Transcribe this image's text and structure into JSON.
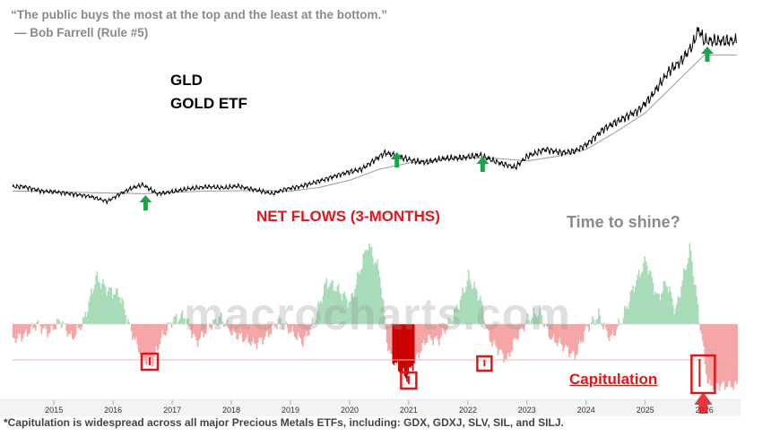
{
  "quote": "“The public buys the most at the top and the least at the bottom.”",
  "quote_author": "— Bob Farrell (Rule #5)",
  "ticker_label": "GLD",
  "name_label": "GOLD ETF",
  "flows_title": "NET FLOWS (3-MONTHS)",
  "question": "Time to shine?",
  "watermark": "macrocharts.com",
  "capitulation_label": "Capitulation",
  "footnote": "*Capitulation is widespread across all major Precious Metals ETFs, including: GDX, GDXJ, SLV, SIL, and SILJ.",
  "colors": {
    "price": "#000000",
    "moving_average": "#9a9a9a",
    "inflow": "#a8dcb8",
    "outflow": "#f5a5a5",
    "extreme_outflow": "#cc0000",
    "arrow": "#1aa34a",
    "highlight": "#e0161b"
  },
  "chart_data": [
    {
      "type": "line",
      "title": "GLD GOLD ETF",
      "x_unit": "year",
      "series": [
        {
          "name": "GLD",
          "x": [
            2014.5,
            2014.8,
            2015.0,
            2015.3,
            2015.6,
            2015.9,
            2016.1,
            2016.3,
            2016.5,
            2016.75,
            2017.0,
            2017.3,
            2017.6,
            2017.9,
            2018.1,
            2018.4,
            2018.7,
            2018.9,
            2019.2,
            2019.5,
            2019.8,
            2020.0,
            2020.2,
            2020.6,
            2020.9,
            2021.1,
            2021.3,
            2021.6,
            2021.9,
            2022.2,
            2022.5,
            2022.8,
            2023.0,
            2023.3,
            2023.6,
            2023.8,
            2024.0,
            2024.3,
            2024.6,
            2024.9,
            2025.1,
            2025.4,
            2025.6,
            2025.8,
            2025.9,
            2026.0
          ],
          "y": [
            125,
            118,
            117,
            114,
            110,
            102,
            113,
            122,
            128,
            114,
            117,
            122,
            125,
            123,
            126,
            120,
            114,
            121,
            126,
            134,
            143,
            148,
            152,
            178,
            170,
            165,
            163,
            169,
            170,
            174,
            163,
            155,
            172,
            183,
            178,
            180,
            190,
            215,
            230,
            245,
            265,
            305,
            320,
            345,
            370,
            352
          ]
        },
        {
          "name": "Moving average",
          "x": [
            2014.5,
            2015.5,
            2016.5,
            2017.5,
            2018.5,
            2019.0,
            2019.5,
            2020.0,
            2020.5,
            2021.0,
            2021.5,
            2022.0,
            2022.5,
            2023.0,
            2023.5,
            2024.0,
            2024.5,
            2025.0,
            2025.5,
            2026.0
          ],
          "y": [
            118,
            116,
            114,
            118,
            119,
            118,
            124,
            135,
            152,
            162,
            167,
            170,
            169,
            165,
            172,
            183,
            210,
            240,
            285,
            330
          ]
        }
      ],
      "annotations": [
        "buy-arrow",
        "buy-arrow",
        "buy-arrow",
        "buy-arrow"
      ]
    },
    {
      "type": "bar",
      "title": "NET FLOWS (3-MONTHS)",
      "x_unit": "year",
      "xticks": [
        "2015",
        "2016",
        "2017",
        "2018",
        "2019",
        "2020",
        "2021",
        "2022",
        "2023",
        "2024",
        "2025",
        "2026"
      ],
      "xlim": [
        2014.3,
        2026.55
      ],
      "ylim": [
        -1,
        1
      ],
      "extreme_threshold": -0.48,
      "series": [
        {
          "name": "Net flows",
          "x": [
            2014.3,
            2014.5,
            2014.7,
            2014.9,
            2015.1,
            2015.3,
            2015.5,
            2015.7,
            2015.9,
            2016.1,
            2016.3,
            2016.5,
            2016.65,
            2016.8,
            2017.0,
            2017.2,
            2017.4,
            2017.6,
            2017.8,
            2018.0,
            2018.2,
            2018.4,
            2018.6,
            2018.8,
            2019.0,
            2019.2,
            2019.4,
            2019.6,
            2019.8,
            2020.0,
            2020.15,
            2020.3,
            2020.5,
            2020.65,
            2020.8,
            2020.95,
            2021.1,
            2021.3,
            2021.5,
            2021.7,
            2021.85,
            2022.0,
            2022.2,
            2022.35,
            2022.5,
            2022.65,
            2022.8,
            2023.0,
            2023.2,
            2023.4,
            2023.6,
            2023.8,
            2024.0,
            2024.2,
            2024.4,
            2024.6,
            2024.8,
            2025.0,
            2025.2,
            2025.35,
            2025.5,
            2025.65,
            2025.75,
            2025.85,
            2025.95,
            2026.05
          ],
          "y": [
            -0.2,
            -0.15,
            0.0,
            -0.12,
            0.05,
            -0.2,
            0.05,
            0.55,
            0.4,
            0.35,
            -0.1,
            -0.5,
            -0.55,
            -0.2,
            0.05,
            0.1,
            -0.25,
            -0.05,
            0.08,
            -0.12,
            -0.2,
            -0.28,
            -0.15,
            0.05,
            -0.1,
            -0.25,
            0.05,
            0.5,
            0.4,
            0.25,
            0.6,
            0.95,
            0.6,
            -0.4,
            -0.6,
            -0.75,
            -0.5,
            -0.2,
            -0.22,
            0.05,
            0.25,
            0.55,
            0.3,
            -0.2,
            -0.35,
            -0.5,
            -0.2,
            0.05,
            0.15,
            -0.2,
            -0.3,
            -0.45,
            -0.05,
            0.1,
            -0.2,
            0.05,
            0.45,
            0.75,
            0.3,
            0.5,
            0.15,
            0.6,
            0.9,
            0.35,
            -0.2,
            -0.85
          ]
        }
      ],
      "annotations": [
        "extreme-box",
        "extreme-box",
        "extreme-box",
        "capitulation-box"
      ]
    }
  ]
}
